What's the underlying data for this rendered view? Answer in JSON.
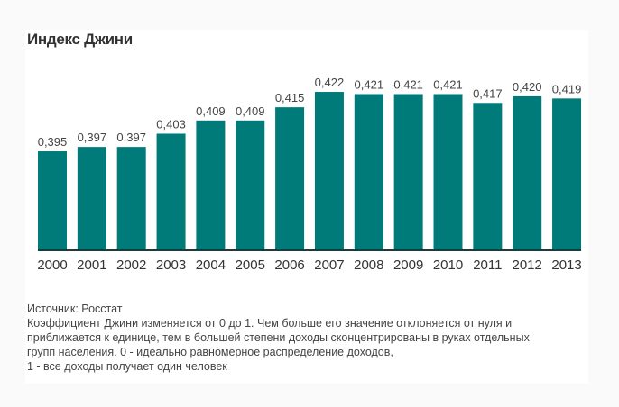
{
  "chart_data": {
    "type": "bar",
    "title": "Индекс Джини",
    "categories": [
      "2000",
      "2001",
      "2002",
      "2003",
      "2004",
      "2005",
      "2006",
      "2007",
      "2008",
      "2009",
      "2010",
      "2011",
      "2012",
      "2013"
    ],
    "values": [
      0.395,
      0.397,
      0.397,
      0.403,
      0.409,
      0.409,
      0.415,
      0.422,
      0.421,
      0.421,
      0.421,
      0.417,
      0.42,
      0.419
    ],
    "labels": [
      "0,395",
      "0,397",
      "0,397",
      "0,403",
      "0,409",
      "0,409",
      "0,415",
      "0,422",
      "0,421",
      "0,421",
      "0,421",
      "0,417",
      "0,420",
      "0,419"
    ],
    "xlabel": "",
    "ylabel": "",
    "ylim": [
      0.35,
      0.43
    ],
    "grid": false,
    "bar_color": "#007b7a",
    "axis_color": "#1f3a3a"
  },
  "footer": {
    "source": "Источник: Росстат",
    "lines": [
      "Коэффициент Джини изменяется от 0 до 1. Чем больше его значение отклоняется от нуля и",
      "приближается к единице, тем в большей степени доходы сконцентрированы в руках отдельных",
      "групп населения. 0 - идеально равномерное распределение доходов,",
      "1 - все доходы получает один человек"
    ]
  }
}
